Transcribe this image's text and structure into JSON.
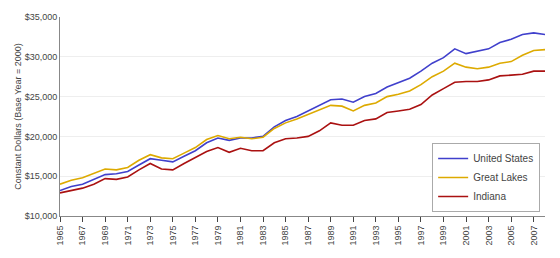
{
  "chart_data": {
    "type": "line",
    "ylabel": "Constant Dollars (Base Year = 2000)",
    "x": [
      1965,
      1966,
      1967,
      1968,
      1969,
      1970,
      1971,
      1972,
      1973,
      1974,
      1975,
      1976,
      1977,
      1978,
      1979,
      1980,
      1981,
      1982,
      1983,
      1984,
      1985,
      1986,
      1987,
      1988,
      1989,
      1990,
      1991,
      1992,
      1993,
      1994,
      1995,
      1996,
      1997,
      1998,
      1999,
      2000,
      2001,
      2002,
      2003,
      2004,
      2005,
      2006,
      2007,
      2008
    ],
    "series": [
      {
        "name": "United States",
        "color": "#4040cc",
        "values": [
          13200,
          13700,
          14000,
          14600,
          15200,
          15300,
          15600,
          16400,
          17200,
          17000,
          16800,
          17500,
          18200,
          19200,
          19800,
          19500,
          19800,
          19800,
          20000,
          21200,
          22000,
          22500,
          23200,
          24000,
          24600,
          24700,
          24300,
          25000,
          25400,
          26200,
          26800,
          27300,
          28200,
          29200,
          29900,
          31000,
          30400,
          30700,
          31000,
          31800,
          32200,
          32800,
          33000,
          32800
        ]
      },
      {
        "name": "Great Lakes",
        "color": "#ddaa00",
        "values": [
          14000,
          14500,
          14800,
          15400,
          15900,
          15800,
          16100,
          17000,
          17700,
          17300,
          17200,
          17900,
          18600,
          19600,
          20100,
          19700,
          19900,
          19700,
          19900,
          21000,
          21700,
          22200,
          22800,
          23400,
          23900,
          23800,
          23200,
          23900,
          24200,
          25000,
          25300,
          25700,
          26500,
          27500,
          28200,
          29200,
          28700,
          28500,
          28700,
          29200,
          29400,
          30200,
          30800,
          30900
        ]
      },
      {
        "name": "Indiana",
        "color": "#aa1111",
        "values": [
          12900,
          13200,
          13500,
          14000,
          14700,
          14600,
          14900,
          15800,
          16600,
          15900,
          15800,
          16600,
          17300,
          18100,
          18600,
          18000,
          18500,
          18200,
          18200,
          19200,
          19700,
          19800,
          20000,
          20700,
          21700,
          21400,
          21400,
          22000,
          22200,
          23000,
          23200,
          23400,
          24000,
          25200,
          26000,
          26800,
          26900,
          26900,
          27100,
          27600,
          27700,
          27800,
          28200,
          28200
        ]
      }
    ],
    "xlim": [
      1965,
      2008
    ],
    "xticks": [
      1965,
      1967,
      1969,
      1971,
      1973,
      1975,
      1977,
      1979,
      1981,
      1983,
      1985,
      1987,
      1989,
      1991,
      1993,
      1995,
      1997,
      1999,
      2001,
      2003,
      2005,
      2007
    ],
    "ylim": [
      10000,
      35000
    ],
    "yticks": [
      {
        "value": 10000,
        "label": "$10,000"
      },
      {
        "value": 15000,
        "label": "$15,000"
      },
      {
        "value": 20000,
        "label": "$20,000"
      },
      {
        "value": 25000,
        "label": "$25,000"
      },
      {
        "value": 30000,
        "label": "$30,000"
      },
      {
        "value": 35000,
        "label": "$35,000"
      }
    ],
    "grid": true,
    "legend": "lower right"
  }
}
